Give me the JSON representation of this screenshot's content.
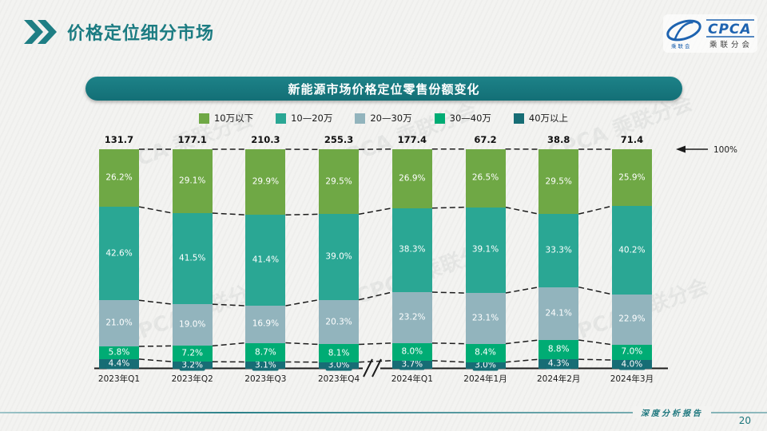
{
  "slide": {
    "header_title": "价格定位细分市场",
    "footer_label": "深度分析报告",
    "page_number": "20",
    "watermark": "CPCA 乘联分会"
  },
  "logo": {
    "abbr": "CPCA",
    "cn": "乘联分会",
    "cn_small": "乘联会",
    "color": "#1e63b0"
  },
  "banner": {
    "title": "新能源市场价格定位零售份额变化"
  },
  "chart_data": {
    "type": "bar",
    "variant": "stacked-100-percent-column",
    "title": "新能源市场价格定位零售份额变化",
    "unit": "%",
    "categories": [
      "2023年Q1",
      "2023年Q2",
      "2023年Q3",
      "2023年Q4",
      "2024年Q1",
      "2024年1月",
      "2024年2月",
      "2024年3月"
    ],
    "totals": [
      131.7,
      177.1,
      210.3,
      255.3,
      177.4,
      67.2,
      38.8,
      71.4
    ],
    "series": [
      {
        "name": "40万以上",
        "color": "#176d75",
        "values": [
          4.4,
          3.2,
          3.1,
          3.0,
          3.7,
          3.0,
          4.3,
          4.0
        ]
      },
      {
        "name": "30—40万",
        "color": "#00ac74",
        "values": [
          5.8,
          7.2,
          8.7,
          8.1,
          8.0,
          8.4,
          8.8,
          7.0
        ]
      },
      {
        "name": "20—30万",
        "color": "#92b4bd",
        "values": [
          21.0,
          19.0,
          16.9,
          20.3,
          23.2,
          23.1,
          24.1,
          22.9
        ]
      },
      {
        "name": "10—20万",
        "color": "#2aa794",
        "values": [
          42.6,
          41.5,
          41.4,
          39.0,
          38.3,
          39.1,
          33.3,
          40.2
        ]
      },
      {
        "name": "10万以下",
        "color": "#6fa845",
        "values": [
          26.2,
          29.1,
          29.9,
          29.5,
          26.9,
          26.5,
          29.5,
          25.9
        ]
      }
    ],
    "legend": [
      "10万以下",
      "10—20万",
      "20—30万",
      "30—40万",
      "40万以上"
    ],
    "legend_position": "top",
    "annotation": "100%",
    "ylim": [
      0,
      100
    ],
    "axis_break_between": [
      "2023年Q4",
      "2024年Q1"
    ],
    "grid": false,
    "note": "dashed connectors link segment boundaries between adjacent bars; series listed bottom-to-top"
  }
}
